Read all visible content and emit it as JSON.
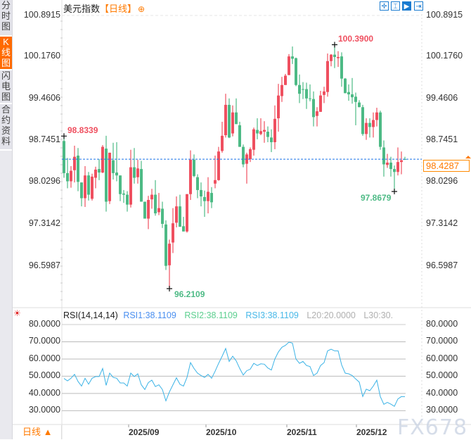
{
  "sidebar": {
    "tabs": [
      {
        "label": "分时图",
        "active": false
      },
      {
        "label": "K线图",
        "active": true
      },
      {
        "label": "闪电图",
        "active": false
      },
      {
        "label": "合约资料",
        "active": false
      }
    ]
  },
  "header": {
    "symbol": "美元指数",
    "period": "【日线】",
    "add_icon": "circle-plus-icon"
  },
  "toolbar": {
    "icons": [
      "crosshair-icon",
      "range-select-icon",
      "play-icon",
      "jump-to-end-icon"
    ]
  },
  "price_axis": {
    "labels": [
      "100.8915",
      "100.1760",
      "99.4606",
      "98.7451",
      "98.0296",
      "97.3142",
      "96.5987"
    ]
  },
  "current_price": "98.4287",
  "annotations": {
    "high": "100.3900",
    "low": "96.2109",
    "left_mark": "98.8339",
    "recent_low": "97.8679"
  },
  "colors": {
    "up": "#ef4f5f",
    "down": "#4dba85",
    "accent": "#ff7a00",
    "price_line": "#1a73e8",
    "rsi_line": "#3bb3e6"
  },
  "rsi": {
    "title": "RSI(14,14,14)",
    "rsi1": "RSI1:38.1109",
    "rsi2": "RSI2:38.1109",
    "rsi3": "RSI3:38.1109",
    "l20": "L20:20.0000",
    "l30": "L30:30.",
    "axis_labels": [
      "80.0000",
      "70.0000",
      "60.0000",
      "50.0000",
      "40.0000",
      "30.0000"
    ],
    "settings_icon": "sun-icon"
  },
  "x_axis": {
    "labels": [
      "2025/09",
      "2025/10",
      "2025/11",
      "2025/12"
    ]
  },
  "bottom_tab": {
    "label": "日线",
    "icon": "triangle-up-icon"
  },
  "watermark": "FX678",
  "chart_data": [
    {
      "type": "candlestick",
      "ylim": [
        96.0,
        100.95
      ],
      "fields": [
        "open",
        "high",
        "low",
        "close"
      ],
      "candles": [
        [
          98.74,
          98.83,
          98.11,
          98.19
        ],
        [
          98.19,
          98.45,
          97.93,
          98.05
        ],
        [
          98.05,
          98.31,
          97.94,
          98.23
        ],
        [
          98.24,
          98.66,
          98.03,
          98.47
        ],
        [
          98.49,
          98.62,
          97.88,
          98.04
        ],
        [
          98.03,
          98.03,
          97.62,
          97.76
        ],
        [
          97.76,
          98.31,
          97.61,
          98.15
        ],
        [
          98.15,
          98.21,
          97.72,
          97.82
        ],
        [
          97.75,
          98.18,
          97.72,
          98.13
        ],
        [
          98.11,
          98.3,
          97.93,
          98.25
        ],
        [
          98.26,
          98.43,
          98.07,
          98.2
        ],
        [
          98.2,
          98.67,
          98.19,
          98.64
        ],
        [
          98.61,
          98.83,
          97.53,
          97.7
        ],
        [
          97.71,
          98.54,
          97.66,
          98.54
        ],
        [
          98.41,
          98.71,
          98.08,
          98.19
        ],
        [
          98.2,
          98.72,
          98.05,
          98.15
        ],
        [
          98.15,
          98.15,
          97.71,
          97.83
        ],
        [
          97.84,
          97.9,
          97.68,
          97.82
        ],
        [
          97.82,
          97.88,
          97.53,
          97.65
        ],
        [
          97.65,
          98.59,
          97.6,
          98.29
        ],
        [
          98.29,
          98.62,
          98.01,
          98.11
        ],
        [
          98.12,
          98.42,
          98.01,
          98.27
        ],
        [
          98.26,
          98.4,
          97.7,
          97.7
        ],
        [
          97.7,
          97.7,
          97.41,
          97.41
        ],
        [
          97.41,
          97.8,
          97.23,
          97.73
        ],
        [
          97.74,
          97.92,
          97.58,
          97.82
        ],
        [
          97.82,
          98.07,
          97.46,
          97.5
        ],
        [
          97.52,
          97.85,
          97.47,
          97.59
        ],
        [
          97.58,
          97.7,
          97.25,
          97.32
        ],
        [
          97.31,
          97.38,
          96.53,
          96.6
        ],
        [
          96.61,
          97.05,
          96.2109,
          96.98
        ],
        [
          97.0,
          97.59,
          96.82,
          97.33
        ],
        [
          97.34,
          97.79,
          97.26,
          97.62
        ],
        [
          97.62,
          97.82,
          97.27,
          97.27
        ],
        [
          97.28,
          97.44,
          97.19,
          97.19
        ],
        [
          97.19,
          97.83,
          97.17,
          97.83
        ],
        [
          97.83,
          98.58,
          97.73,
          98.42
        ],
        [
          98.42,
          98.51,
          98.12,
          98.14
        ],
        [
          98.12,
          98.17,
          97.76,
          97.9
        ],
        [
          97.9,
          98.03,
          97.62,
          97.79
        ],
        [
          97.78,
          97.89,
          97.44,
          97.71
        ],
        [
          97.71,
          98.12,
          97.5,
          97.87
        ],
        [
          97.85,
          97.95,
          97.59,
          97.69
        ],
        [
          98.01,
          98.49,
          97.93,
          98.07
        ],
        [
          98.07,
          98.64,
          98.06,
          98.56
        ],
        [
          98.57,
          99.07,
          98.54,
          98.83
        ],
        [
          98.84,
          99.55,
          98.8,
          99.36
        ],
        [
          99.36,
          99.47,
          98.79,
          98.8
        ],
        [
          98.87,
          99.35,
          98.82,
          99.23
        ],
        [
          99.23,
          99.47,
          99.03,
          99.03
        ],
        [
          99.01,
          99.07,
          98.64,
          98.64
        ],
        [
          98.64,
          98.68,
          98.29,
          98.34
        ],
        [
          98.35,
          98.54,
          98.01,
          98.51
        ],
        [
          98.43,
          98.63,
          98.38,
          98.6
        ],
        [
          98.59,
          98.97,
          98.49,
          98.94
        ],
        [
          98.93,
          99.13,
          98.77,
          98.87
        ],
        [
          98.86,
          99.13,
          98.84,
          98.91
        ],
        [
          98.9,
          99.08,
          98.71,
          98.93
        ],
        [
          98.9,
          98.99,
          98.72,
          98.81
        ],
        [
          98.8,
          98.94,
          98.55,
          98.72
        ],
        [
          98.72,
          99.35,
          98.6,
          99.12
        ],
        [
          99.13,
          99.72,
          98.9,
          99.52
        ],
        [
          99.51,
          99.84,
          99.41,
          99.7
        ],
        [
          99.7,
          99.89,
          99.7,
          99.86
        ],
        [
          99.87,
          100.23,
          99.87,
          100.19
        ],
        [
          100.19,
          100.36,
          100.06,
          100.15
        ],
        [
          100.16,
          100.17,
          99.68,
          99.7
        ],
        [
          99.7,
          99.88,
          99.39,
          99.55
        ],
        [
          99.63,
          99.75,
          99.46,
          99.62
        ],
        [
          99.63,
          99.74,
          99.29,
          99.47
        ],
        [
          99.47,
          99.71,
          99.42,
          99.46
        ],
        [
          99.46,
          99.59,
          98.99,
          99.15
        ],
        [
          99.17,
          99.32,
          98.99,
          99.25
        ],
        [
          99.24,
          99.6,
          99.24,
          99.52
        ],
        [
          99.53,
          99.67,
          99.39,
          99.59
        ],
        [
          99.58,
          100.24,
          99.5,
          100.11
        ],
        [
          100.11,
          100.23,
          100.02,
          100.22
        ],
        [
          100.22,
          100.39,
          99.99,
          100.18
        ],
        [
          100.16,
          100.28,
          100.01,
          100.18
        ],
        [
          100.19,
          100.26,
          99.67,
          99.81
        ],
        [
          99.81,
          99.82,
          99.56,
          99.56
        ],
        [
          99.58,
          99.71,
          99.43,
          99.54
        ],
        [
          99.54,
          99.82,
          99.38,
          99.49
        ],
        [
          99.5,
          99.57,
          99.01,
          99.41
        ],
        [
          99.4,
          99.44,
          99.32,
          99.32
        ],
        [
          99.32,
          99.36,
          98.83,
          98.86
        ],
        [
          98.86,
          99.13,
          98.76,
          99.05
        ],
        [
          99.05,
          99.13,
          98.8,
          98.98
        ],
        [
          98.98,
          99.23,
          98.8,
          99.1
        ],
        [
          99.1,
          99.31,
          98.99,
          99.23
        ],
        [
          99.23,
          99.26,
          98.59,
          98.64
        ],
        [
          98.63,
          98.75,
          98.13,
          98.34
        ],
        [
          98.33,
          98.52,
          98.28,
          98.37
        ],
        [
          98.37,
          98.47,
          98.13,
          98.26
        ],
        [
          98.26,
          98.32,
          97.8679,
          98.21
        ],
        [
          98.21,
          98.63,
          98.15,
          98.38
        ],
        [
          98.38,
          98.56,
          98.17,
          98.41
        ],
        [
          98.43,
          98.47,
          98.42,
          98.4287
        ]
      ]
    },
    {
      "type": "line",
      "title": "RSI(14,14,14)",
      "ylim": [
        20,
        80
      ],
      "values": [
        48.7,
        47.3,
        48.8,
        51.1,
        47.0,
        44.3,
        48.8,
        45.4,
        48.8,
        49.8,
        49.8,
        54.5,
        44.7,
        51.8,
        49.3,
        48.8,
        46.1,
        46.1,
        44.3,
        51.8,
        49.8,
        51.4,
        45.0,
        42.3,
        46.3,
        47.7,
        44.0,
        45.0,
        42.3,
        35.7,
        40.9,
        45.0,
        49.1,
        45.3,
        44.3,
        49.3,
        57.9,
        54.5,
        51.8,
        50.4,
        49.3,
        51.1,
        48.8,
        52.9,
        57.5,
        61.6,
        66.1,
        58.6,
        61.6,
        58.9,
        54.5,
        50.7,
        53.2,
        54.1,
        57.5,
        56.2,
        57.2,
        57.0,
        54.8,
        53.6,
        60.0,
        64.1,
        66.8,
        67.9,
        69.8,
        69.2,
        60.0,
        57.5,
        58.6,
        56.2,
        55.6,
        50.4,
        51.8,
        56.2,
        57.9,
        64.7,
        65.7,
        64.7,
        64.7,
        56.6,
        51.8,
        51.4,
        50.4,
        48.4,
        46.6,
        38.2,
        42.5,
        41.6,
        44.3,
        47.7,
        38.2,
        33.7,
        34.8,
        33.8,
        32.5,
        36.8,
        38.2,
        38.1109
      ]
    }
  ]
}
